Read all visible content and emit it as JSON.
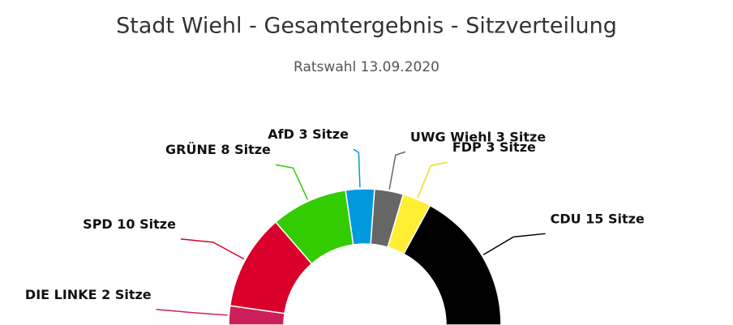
{
  "chart_data": {
    "type": "semicircle",
    "title": "Stadt Wiehl - Gesamtergebnis - Sitzverteilung",
    "subtitle": "Ratswahl 13.09.2020",
    "categories": [
      "DIE LINKE",
      "SPD",
      "GRÜNE",
      "AfD",
      "UWG Wiehl",
      "FDP",
      "CDU"
    ],
    "values": [
      2,
      10,
      8,
      3,
      3,
      3,
      15
    ],
    "value_labels": [
      "2 Sitze",
      "10 Sitze",
      "8 Sitze",
      "3 Sitze",
      "3 Sitze",
      "3 Sitze",
      "15 Sitze"
    ],
    "colors": [
      "#cc1f5a",
      "#d9002b",
      "#33cc00",
      "#0099dd",
      "#666666",
      "#ffee33",
      "#000000"
    ]
  }
}
